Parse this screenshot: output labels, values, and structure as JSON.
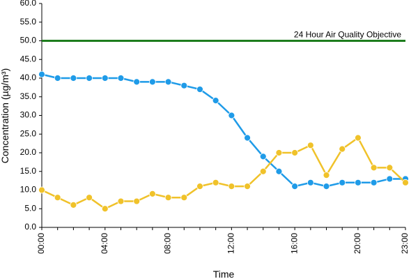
{
  "chart_data": {
    "type": "line",
    "xlabel": "Time",
    "ylabel": "Concentration (µg/m³)",
    "ylim": [
      0,
      60
    ],
    "y_ticks": [
      "0.0",
      "5.0",
      "10.0",
      "15.0",
      "20.0",
      "25.0",
      "30.0",
      "35.0",
      "40.0",
      "45.0",
      "50.0",
      "55.0",
      "60.0"
    ],
    "x": [
      "00:00",
      "01:00",
      "02:00",
      "03:00",
      "04:00",
      "05:00",
      "06:00",
      "07:00",
      "08:00",
      "09:00",
      "10:00",
      "11:00",
      "12:00",
      "13:00",
      "14:00",
      "15:00",
      "16:00",
      "17:00",
      "18:00",
      "19:00",
      "20:00",
      "21:00",
      "22:00",
      "23:00"
    ],
    "x_tick_labels": [
      "00:00",
      "04:00",
      "08:00",
      "12:00",
      "16:00",
      "20:00",
      "23:00"
    ],
    "grid": false,
    "series": [
      {
        "color": "#1f9be8",
        "values": [
          41,
          40,
          40,
          40,
          40,
          40,
          39,
          39,
          39,
          38,
          37,
          34,
          30,
          24,
          19,
          15,
          11,
          12,
          11,
          12,
          12,
          12,
          13,
          13
        ]
      },
      {
        "color": "#f0c22a",
        "values": [
          10,
          8,
          6,
          8,
          5,
          7,
          7,
          9,
          8,
          8,
          11,
          12,
          11,
          11,
          15,
          20,
          20,
          22,
          14,
          21,
          24,
          16,
          16,
          12
        ]
      }
    ],
    "reference_lines": [
      {
        "value": 50,
        "label": "24 Hour Air Quality Objective",
        "color": "#1e7d1e"
      }
    ]
  }
}
